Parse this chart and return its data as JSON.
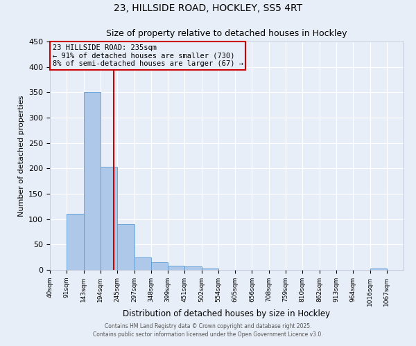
{
  "title": "23, HILLSIDE ROAD, HOCKLEY, SS5 4RT",
  "subtitle": "Size of property relative to detached houses in Hockley",
  "xlabel": "Distribution of detached houses by size in Hockley",
  "ylabel": "Number of detached properties",
  "bar_edges": [
    40,
    91,
    143,
    194,
    245,
    297,
    348,
    399,
    451,
    502,
    554,
    605,
    656,
    708,
    759,
    810,
    862,
    913,
    964,
    1016,
    1067
  ],
  "bar_values": [
    0,
    110,
    350,
    203,
    90,
    24,
    15,
    8,
    7,
    3,
    0,
    0,
    0,
    0,
    0,
    0,
    0,
    0,
    0,
    3
  ],
  "bar_color": "#adc8e8",
  "bar_edge_color": "#5b9bd5",
  "background_color": "#e8eef8",
  "grid_color": "#ffffff",
  "red_line_x": 235,
  "annotation_text": "23 HILLSIDE ROAD: 235sqm\n← 91% of detached houses are smaller (730)\n8% of semi-detached houses are larger (67) →",
  "annotation_box_edgecolor": "#cc0000",
  "ylim": [
    0,
    450
  ],
  "yticks": [
    0,
    50,
    100,
    150,
    200,
    250,
    300,
    350,
    400,
    450
  ],
  "footer_line1": "Contains HM Land Registry data © Crown copyright and database right 2025.",
  "footer_line2": "Contains public sector information licensed under the Open Government Licence v3.0."
}
